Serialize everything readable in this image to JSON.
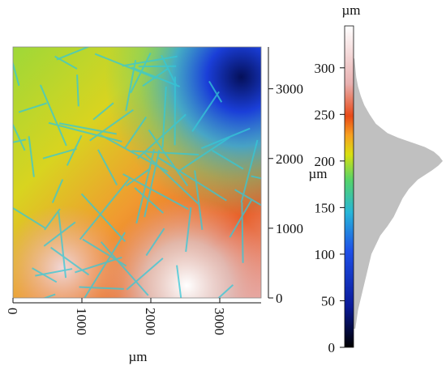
{
  "chart_data": [
    {
      "type": "heatmap",
      "title": "",
      "xlabel": "µm",
      "ylabel": "µm",
      "xlim": [
        0,
        3600
      ],
      "ylim": [
        0,
        3600
      ],
      "x_ticks": [
        "0",
        "1000",
        "2000",
        "3000"
      ],
      "x_tick_values": [
        0,
        1000,
        2000,
        3000
      ],
      "y_ticks": [
        "0",
        "1000",
        "2000",
        "3000"
      ],
      "y_tick_values": [
        0,
        1000,
        2000,
        3000
      ],
      "z_unit": "µm",
      "z_range": [
        0,
        345
      ],
      "description_regions": [
        {
          "region": "top-right",
          "level": "low"
        },
        {
          "region": "bottom-center",
          "level": "high"
        }
      ]
    },
    {
      "type": "bar",
      "title": "",
      "unit": "µm",
      "ylim": [
        0,
        345
      ],
      "ticks": [
        "0",
        "50",
        "100",
        "150",
        "200",
        "250",
        "300"
      ],
      "tick_values": [
        0,
        50,
        100,
        150,
        200,
        250,
        300
      ],
      "histogram_levels": [
        20,
        40,
        60,
        80,
        100,
        110,
        120,
        130,
        140,
        150,
        160,
        170,
        180,
        185,
        190,
        195,
        200,
        205,
        210,
        215,
        220,
        225,
        230,
        240,
        250,
        260,
        270,
        280,
        290,
        300,
        310
      ],
      "histogram_counts": [
        0.02,
        0.05,
        0.1,
        0.15,
        0.2,
        0.25,
        0.3,
        0.38,
        0.45,
        0.5,
        0.55,
        0.62,
        0.72,
        0.8,
        0.88,
        0.95,
        1.0,
        0.96,
        0.9,
        0.8,
        0.65,
        0.5,
        0.38,
        0.25,
        0.18,
        0.12,
        0.08,
        0.05,
        0.03,
        0.02,
        0.01
      ]
    }
  ],
  "colors": {
    "colormap": [
      "#000000",
      "#0a1a9a",
      "#1e50e8",
      "#27b6d8",
      "#55d36a",
      "#d8e010",
      "#f7a020",
      "#e84a18",
      "#e8b0b0",
      "#ffffff"
    ],
    "histogram_fill": "#c0c0c0"
  }
}
